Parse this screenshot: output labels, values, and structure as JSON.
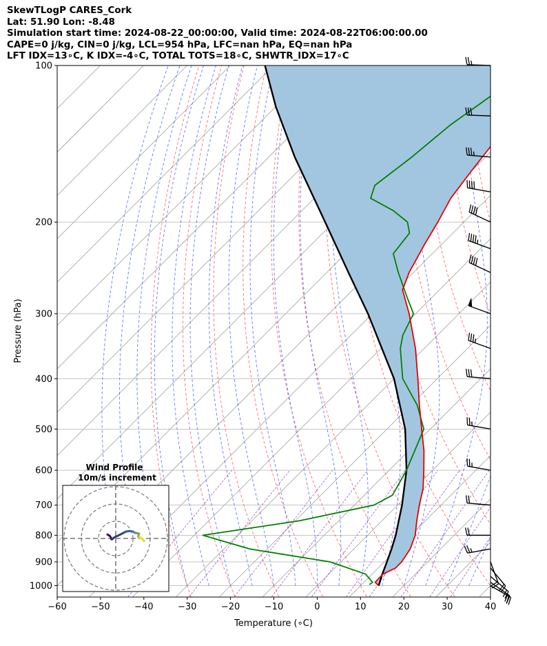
{
  "header": {
    "line1": "SkewTLogP CARES_Cork",
    "line2": "Lat: 51.90   Lon: -8.48",
    "line3": "Simulation start time: 2024-08-22_00:00:00, Valid time: 2024-08-22T06:00:00.00",
    "line4": "CAPE=0 j/kg, CIN=0 j/kg, LCL=954 hPa, LFC=nan hPa, EQ=nan hPa",
    "line5": "LFT IDX=13∘C, K IDX=-4∘C, TOTAL TOTS=18∘C, SHWTR_IDX=17∘C"
  },
  "chart_data": [
    {
      "type": "line",
      "subtype": "skew-t log-p",
      "xlabel": "Temperature (∘C)",
      "ylabel": "Pressure (hPa)",
      "xlim": [
        -60,
        40
      ],
      "ylim": [
        1050,
        100
      ],
      "y_scale": "log",
      "x_ticks": [
        -60,
        -50,
        -40,
        -30,
        -20,
        -10,
        0,
        10,
        20,
        30,
        40
      ],
      "x_tick_labels": [
        "−60",
        "−50",
        "−40",
        "−30",
        "−20",
        "−10",
        "0",
        "10",
        "20",
        "30",
        "40"
      ],
      "y_ticks": [
        1000,
        900,
        800,
        700,
        600,
        500,
        400,
        300,
        200,
        100
      ],
      "y_tick_labels": [
        "1000",
        "900",
        "800",
        "700",
        "600",
        "500",
        "400",
        "300",
        "200",
        "100"
      ],
      "grid": true,
      "colors": {
        "temperature": "#e00000",
        "dewpoint": "#008000",
        "parcel": "#000000",
        "shading": "#a3c6e0",
        "dry_adiabats": "#f04040",
        "moist_adiabats": "#3050f0",
        "mixing_ratio": "#9040c0",
        "isotherms": "#a0a0a0"
      },
      "temperature": {
        "p": [
          1000,
          985,
          950,
          925,
          900,
          850,
          800,
          750,
          700,
          650,
          600,
          550,
          500,
          450,
          400,
          350,
          300,
          270,
          250,
          220,
          200,
          180,
          160,
          140,
          120,
          110,
          100
        ],
        "t": [
          14.2,
          12.6,
          12.5,
          14.0,
          14.0,
          13.0,
          11.0,
          8.0,
          5.0,
          2.0,
          -2.0,
          -6.5,
          -12.0,
          -18.0,
          -24.5,
          -32.0,
          -41.5,
          -48.5,
          -51.0,
          -54.0,
          -56.0,
          -58.5,
          -60.0,
          -61.5,
          -62.5,
          -63.0,
          -63.5
        ]
      },
      "dewpoint": {
        "p": [
          995,
          985,
          950,
          900,
          850,
          800,
          750,
          700,
          670,
          600,
          500,
          450,
          400,
          350,
          330,
          300,
          280,
          250,
          230,
          210,
          200,
          190,
          180,
          170,
          150,
          130,
          110,
          100
        ],
        "t": [
          11.8,
          12.0,
          8.5,
          -2.5,
          -24.0,
          -38.0,
          -19.0,
          -5.5,
          -3.5,
          -6.0,
          -11.5,
          -18.5,
          -28.0,
          -35.5,
          -38.0,
          -40.5,
          -45.5,
          -53.5,
          -59.0,
          -60.0,
          -63.0,
          -69.0,
          -77.0,
          -79.0,
          -77.0,
          -75.5,
          -72.0,
          -69.5
        ]
      },
      "parcel": {
        "p": [
          1000,
          954,
          900,
          850,
          800,
          700,
          600,
          500,
          400,
          300,
          250,
          200,
          150,
          120,
          100
        ],
        "t": [
          14.2,
          12.5,
          10.6,
          8.7,
          6.5,
          1.0,
          -6.0,
          -15.8,
          -30.0,
          -51.0,
          -65.0,
          -82.0,
          -104.0,
          -120.0,
          -132.0
        ]
      },
      "wind_barbs": {
        "p": [
          1000,
          985,
          960,
          925,
          900,
          850,
          800,
          700,
          600,
          500,
          400,
          350,
          300,
          250,
          225,
          200,
          175,
          150,
          125,
          100
        ],
        "speed_kt": [
          20,
          20,
          20,
          20,
          20,
          25,
          20,
          20,
          25,
          25,
          30,
          35,
          50,
          40,
          45,
          40,
          40,
          35,
          30,
          25
        ],
        "direction_deg": [
          120,
          125,
          130,
          140,
          160,
          260,
          270,
          275,
          280,
          280,
          275,
          290,
          290,
          295,
          290,
          295,
          280,
          275,
          272,
          272
        ]
      }
    },
    {
      "type": "line",
      "subtype": "hodograph",
      "title": "Wind Profile",
      "subtitle": "10m/s increment",
      "rings_ms": [
        10,
        20,
        30
      ],
      "series": [
        {
          "color_start": "#440154",
          "color_end": "#fde725",
          "u": [
            -4.8,
            -3.5,
            -2.8,
            -2.5,
            -2.0,
            -1.0,
            2.5,
            5.0,
            6.0,
            8.0,
            10.0,
            11.0,
            12.0,
            13.5,
            13.0,
            14.5,
            15.5,
            16.5,
            15.0,
            14.0
          ],
          "v": [
            2.3,
            1.5,
            0.5,
            -0.5,
            -0.4,
            0.5,
            2.2,
            3.5,
            4.0,
            4.3,
            4.0,
            3.3,
            3.1,
            2.8,
            1.0,
            0.5,
            -0.5,
            -1.5,
            0.0,
            0.7
          ]
        }
      ]
    }
  ]
}
